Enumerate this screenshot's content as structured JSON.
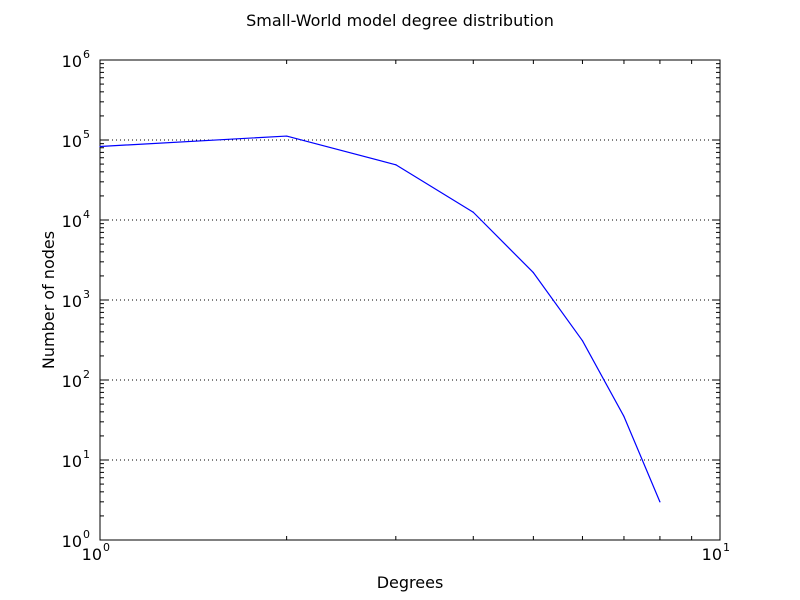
{
  "chart_data": {
    "type": "line",
    "title": "Small-World model degree distribution",
    "xlabel": "Degrees",
    "ylabel": "Number of nodes",
    "xscale": "log",
    "yscale": "log",
    "xlim": [
      1,
      10
    ],
    "ylim": [
      1,
      1000000
    ],
    "x_ticks": [
      {
        "base": "10",
        "exp": "0",
        "value": 1
      },
      {
        "base": "10",
        "exp": "1",
        "value": 10
      }
    ],
    "y_ticks": [
      {
        "base": "10",
        "exp": "0",
        "value": 1
      },
      {
        "base": "10",
        "exp": "1",
        "value": 10
      },
      {
        "base": "10",
        "exp": "2",
        "value": 100
      },
      {
        "base": "10",
        "exp": "3",
        "value": 1000
      },
      {
        "base": "10",
        "exp": "4",
        "value": 10000
      },
      {
        "base": "10",
        "exp": "5",
        "value": 100000
      },
      {
        "base": "10",
        "exp": "6",
        "value": 1000000
      }
    ],
    "grid": "y-major dotted",
    "legend": "none",
    "series": [
      {
        "color": "#0000ff",
        "x": [
          1,
          2,
          3,
          4,
          5,
          6,
          7,
          8
        ],
        "y": [
          83000,
          112000,
          49000,
          12500,
          2200,
          310,
          35,
          3
        ]
      }
    ]
  }
}
